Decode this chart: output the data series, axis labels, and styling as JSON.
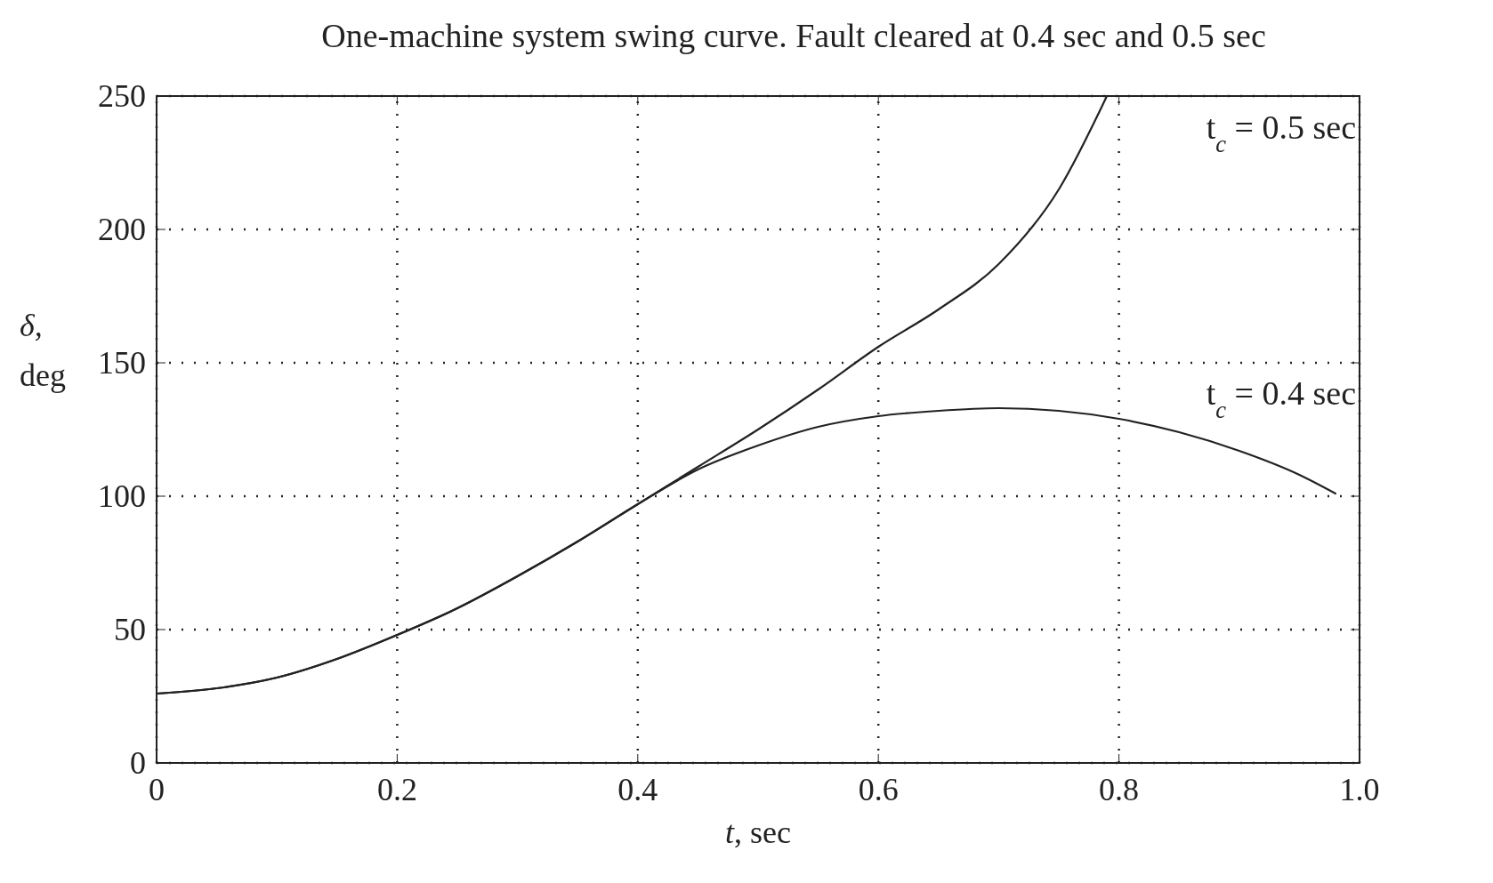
{
  "chart_data": {
    "type": "line",
    "title": "One-machine system swing curve. Fault cleared at 0.4 sec and 0.5 sec",
    "xlabel": "t, sec",
    "ylabel": "δ, deg",
    "xlim": [
      0,
      1.0
    ],
    "ylim": [
      0,
      250
    ],
    "xticks": [
      0,
      0.2,
      0.4,
      0.6,
      0.8,
      {
        "value": 1.0,
        "label": "1.0"
      }
    ],
    "yticks": [
      0,
      50,
      100,
      150,
      200,
      250
    ],
    "grid": true,
    "line_style": "solid",
    "marker": "none",
    "series": [
      {
        "name": "t$_{c}$ = 0.5 sec",
        "color": "#222222",
        "x": [
          0,
          0.05,
          0.1,
          0.15,
          0.2,
          0.25,
          0.3,
          0.35,
          0.4,
          0.45,
          0.5,
          0.55,
          0.6,
          0.65,
          0.7,
          0.75,
          0.79
        ],
        "values": [
          26,
          28,
          32,
          39,
          48,
          58,
          70,
          83,
          97,
          111,
          125,
          140,
          156,
          170,
          187,
          215,
          250
        ]
      },
      {
        "name": "t$_{c}$ = 0.4 sec",
        "color": "#222222",
        "x": [
          0,
          0.05,
          0.1,
          0.15,
          0.2,
          0.25,
          0.3,
          0.35,
          0.4,
          0.45,
          0.5,
          0.55,
          0.6,
          0.65,
          0.7,
          0.75,
          0.8,
          0.85,
          0.9,
          0.95,
          0.98
        ],
        "values": [
          26,
          28,
          32,
          39,
          48,
          58,
          70,
          83,
          97,
          110,
          119,
          126,
          130,
          132,
          133,
          132,
          129,
          124,
          117,
          108,
          101
        ]
      }
    ]
  }
}
